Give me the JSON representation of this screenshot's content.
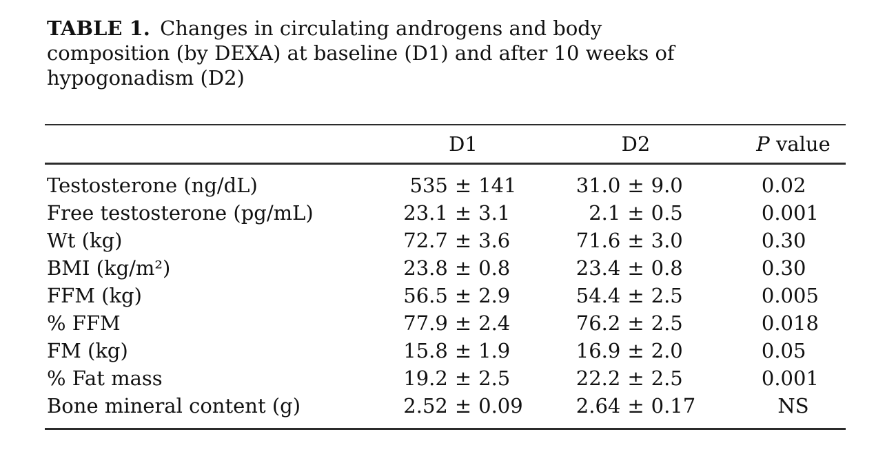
{
  "caption": {
    "label": "TABLE 1.",
    "line1_rest": " Changes in circulating androgens and body",
    "line2": "composition (by DEXA) at baseline (D1) and after 10 weeks of",
    "line3": "hypogonadism (D2)"
  },
  "table": {
    "plus_minus": "±",
    "header": {
      "d1": "D1",
      "d2": "D2",
      "p_italic": "P",
      "p_rest": " value"
    },
    "rows": [
      {
        "label": "Testosterone (ng/dL)",
        "d1_mean": "535",
        "d1_sd": "141",
        "d2_mean": "31.0",
        "d2_sd": "9.0",
        "p": "0.02"
      },
      {
        "label": "Free testosterone (pg/mL)",
        "d1_mean": "23.1",
        "d1_sd": "3.1",
        "d2_mean": "2.1",
        "d2_sd": "0.5",
        "p": "0.001"
      },
      {
        "label": "Wt (kg)",
        "d1_mean": "72.7",
        "d1_sd": "3.6",
        "d2_mean": "71.6",
        "d2_sd": "3.0",
        "p": "0.30"
      },
      {
        "label": "BMI (kg/m²)",
        "d1_mean": "23.8",
        "d1_sd": "0.8",
        "d2_mean": "23.4",
        "d2_sd": "0.8",
        "p": "0.30"
      },
      {
        "label": "FFM (kg)",
        "d1_mean": "56.5",
        "d1_sd": "2.9",
        "d2_mean": "54.4",
        "d2_sd": "2.5",
        "p": "0.005"
      },
      {
        "label": "% FFM",
        "d1_mean": "77.9",
        "d1_sd": "2.4",
        "d2_mean": "76.2",
        "d2_sd": "2.5",
        "p": "0.018"
      },
      {
        "label": "FM (kg)",
        "d1_mean": "15.8",
        "d1_sd": "1.9",
        "d2_mean": "16.9",
        "d2_sd": "2.0",
        "p": "0.05"
      },
      {
        "label": "% Fat mass",
        "d1_mean": "19.2",
        "d1_sd": "2.5",
        "d2_mean": "22.2",
        "d2_sd": "2.5",
        "p": "0.001"
      },
      {
        "label": "Bone mineral content (g)",
        "d1_mean": "2.52",
        "d1_sd": "0.09",
        "d2_mean": "2.64",
        "d2_sd": "0.17",
        "p": "NS"
      }
    ]
  },
  "colors": {
    "background": "#ffffff",
    "text": "#111111",
    "rule": "#2b2b2b"
  }
}
